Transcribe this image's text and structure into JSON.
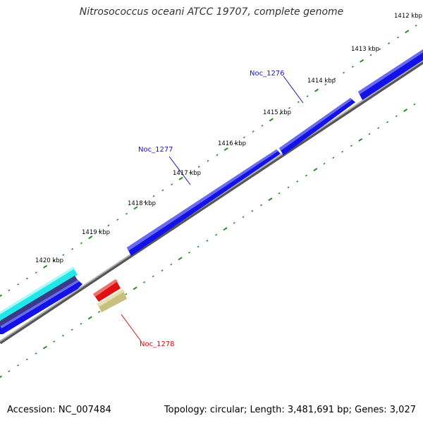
{
  "title": "Nitrosococcus oceani ATCC 19707, complete genome",
  "accession": "Accession: NC_007484",
  "summary": "Topology: circular; Length: 3,481,691 bp; Genes: 3,027",
  "colors": {
    "forward_gene": "#1010e0",
    "cds_cyan": "#20e8e8",
    "cds_red": "#e01010",
    "cds_olive": "#c8c080",
    "backbone": "#888888",
    "tick": "#2a8a2a",
    "label_blue": "#1a1aa8",
    "label_red": "#cc1010"
  },
  "scale_labels": [
    "1412 kbp",
    "1413 kbp",
    "1414 kbp",
    "1415 kbp",
    "1416 kbp",
    "1417 kbp",
    "1418 kbp",
    "1419 kbp",
    "1420 kbp"
  ],
  "gene_labels": {
    "noc_1276": "Noc_1276",
    "noc_1277": "Noc_1277",
    "noc_1278": "Noc_1278"
  }
}
